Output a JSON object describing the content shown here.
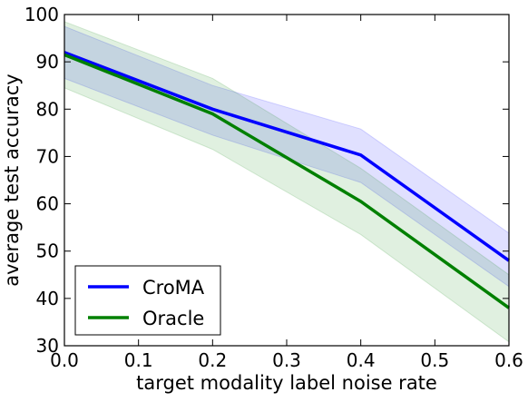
{
  "chart_data": {
    "type": "line",
    "title": "",
    "xlabel": "target modality label noise rate",
    "ylabel": "average test accuracy",
    "xlim": [
      0.0,
      0.6
    ],
    "ylim": [
      30,
      100
    ],
    "xticks": [
      "0.0",
      "0.1",
      "0.2",
      "0.3",
      "0.4",
      "0.5",
      "0.6"
    ],
    "yticks": [
      "30",
      "40",
      "50",
      "60",
      "70",
      "80",
      "90",
      "100"
    ],
    "x": [
      0.0,
      0.2,
      0.4,
      0.6
    ],
    "grid": false,
    "legend_position": "lower-left",
    "series": [
      {
        "name": "CroMA",
        "color": "#0000ff",
        "values": [
          92.0,
          80.0,
          70.3,
          48.0
        ],
        "band_upper": [
          97.5,
          85.0,
          75.8,
          53.8
        ],
        "band_lower": [
          86.5,
          74.5,
          64.5,
          42.5
        ],
        "band_color": "#0000ff"
      },
      {
        "name": "Oracle",
        "color": "#008000",
        "values": [
          91.5,
          79.0,
          60.5,
          38.0
        ],
        "band_upper": [
          98.5,
          86.5,
          67.5,
          45.0
        ],
        "band_lower": [
          84.5,
          71.5,
          53.5,
          30.8
        ],
        "band_color": "#008000"
      }
    ]
  }
}
